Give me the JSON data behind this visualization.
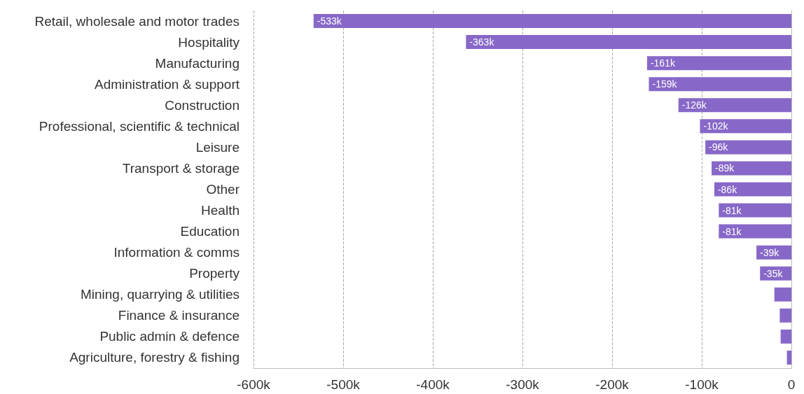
{
  "chart_data": {
    "type": "bar",
    "orientation": "horizontal",
    "categories": [
      "Retail, wholesale and motor trades",
      "Hospitality",
      "Manufacturing",
      "Administration & support",
      "Construction",
      "Professional, scientific & technical",
      "Leisure",
      "Transport & storage",
      "Other",
      "Health",
      "Education",
      "Information & comms",
      "Property",
      "Mining, quarrying & utilities",
      "Finance & insurance",
      "Public admin & defence",
      "Agriculture, forestry & fishing"
    ],
    "values": [
      -533,
      -363,
      -161,
      -159,
      -126,
      -102,
      -96,
      -89,
      -86,
      -81,
      -81,
      -39,
      -35,
      -19,
      -13,
      -12,
      -5
    ],
    "value_labels": [
      "-533k",
      "-363k",
      "-161k",
      "-159k",
      "-126k",
      "-102k",
      "-96k",
      "-89k",
      "-86k",
      "-81k",
      "-81k",
      "-39k",
      "-35k",
      null,
      null,
      null,
      null
    ],
    "color": "#8768c8",
    "xlim": [
      -600,
      0
    ],
    "xticks": [
      {
        "value": -600,
        "label": "-600k"
      },
      {
        "value": -500,
        "label": "-500k"
      },
      {
        "value": -400,
        "label": "-400k"
      },
      {
        "value": -300,
        "label": "-300k"
      },
      {
        "value": -200,
        "label": "-200k"
      },
      {
        "value": -100,
        "label": "-100k"
      },
      0
    ],
    "grid": "x"
  }
}
